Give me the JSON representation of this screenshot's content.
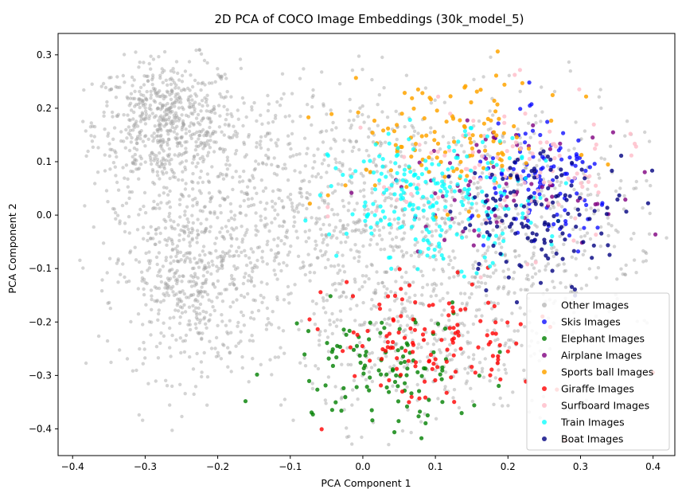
{
  "chart_data": {
    "type": "scatter",
    "title": "2D PCA of COCO Image Embeddings (30k_model_5)",
    "xlabel": "PCA Component 1",
    "ylabel": "PCA Component 2",
    "xlim": [
      -0.42,
      0.43
    ],
    "ylim": [
      -0.45,
      0.34
    ],
    "xticks": [
      -0.4,
      -0.3,
      -0.2,
      -0.1,
      0.0,
      0.1,
      0.2,
      0.3,
      0.4
    ],
    "xtick_labels": [
      "−0.4",
      "−0.3",
      "−0.2",
      "−0.1",
      "0.0",
      "0.1",
      "0.2",
      "0.3",
      "0.4"
    ],
    "yticks": [
      0.3,
      0.2,
      0.1,
      0.0,
      -0.1,
      -0.2,
      -0.3,
      -0.4
    ],
    "ytick_labels": [
      "0.3",
      "0.2",
      "0.1",
      "0.0",
      "−0.1",
      "−0.2",
      "−0.3",
      "−0.4"
    ],
    "grid": false,
    "legend_position": "bottom-right",
    "series": [
      {
        "name": "Other Images",
        "color": "#a0a0a0",
        "alpha": 0.45,
        "marker_size": 2.2,
        "clusters": [
          {
            "cx": -0.27,
            "cy": 0.17,
            "sx": 0.05,
            "sy": 0.06,
            "n": 650
          },
          {
            "cx": -0.24,
            "cy": -0.12,
            "sx": 0.05,
            "sy": 0.09,
            "n": 520
          },
          {
            "cx": -0.12,
            "cy": 0.02,
            "sx": 0.09,
            "sy": 0.12,
            "n": 520
          },
          {
            "cx": 0.04,
            "cy": -0.05,
            "sx": 0.09,
            "sy": 0.14,
            "n": 450
          },
          {
            "cx": 0.22,
            "cy": 0.0,
            "sx": 0.1,
            "sy": 0.12,
            "n": 420
          },
          {
            "cx": 0.1,
            "cy": -0.25,
            "sx": 0.09,
            "sy": 0.07,
            "n": 240
          }
        ]
      },
      {
        "name": "Skis Images",
        "color": "#0000ff",
        "alpha": 0.75,
        "marker_size": 2.6,
        "clusters": [
          {
            "cx": 0.25,
            "cy": 0.05,
            "sx": 0.05,
            "sy": 0.06,
            "n": 110
          }
        ]
      },
      {
        "name": "Elephant Images",
        "color": "#008000",
        "alpha": 0.8,
        "marker_size": 2.6,
        "clusters": [
          {
            "cx": 0.03,
            "cy": -0.28,
            "sx": 0.07,
            "sy": 0.06,
            "n": 110
          }
        ]
      },
      {
        "name": "Airplane Images",
        "color": "#800080",
        "alpha": 0.8,
        "marker_size": 2.6,
        "clusters": [
          {
            "cx": 0.18,
            "cy": 0.05,
            "sx": 0.07,
            "sy": 0.05,
            "n": 70
          }
        ]
      },
      {
        "name": "Sports ball Images",
        "color": "#ffa500",
        "alpha": 0.85,
        "marker_size": 2.6,
        "clusters": [
          {
            "cx": 0.12,
            "cy": 0.14,
            "sx": 0.08,
            "sy": 0.06,
            "n": 120
          }
        ]
      },
      {
        "name": "Giraffe Images",
        "color": "#ff0000",
        "alpha": 0.8,
        "marker_size": 2.6,
        "clusters": [
          {
            "cx": 0.1,
            "cy": -0.24,
            "sx": 0.07,
            "sy": 0.06,
            "n": 130
          }
        ]
      },
      {
        "name": "Surfboard Images",
        "color": "#ffc0cb",
        "alpha": 0.85,
        "marker_size": 2.6,
        "clusters": [
          {
            "cx": 0.2,
            "cy": 0.08,
            "sx": 0.09,
            "sy": 0.07,
            "n": 110
          }
        ]
      },
      {
        "name": "Train Images",
        "color": "#00ffff",
        "alpha": 0.75,
        "marker_size": 2.6,
        "clusters": [
          {
            "cx": 0.1,
            "cy": 0.03,
            "sx": 0.07,
            "sy": 0.06,
            "n": 230
          }
        ]
      },
      {
        "name": "Boat Images",
        "color": "#000080",
        "alpha": 0.8,
        "marker_size": 2.6,
        "clusters": [
          {
            "cx": 0.25,
            "cy": 0.0,
            "sx": 0.06,
            "sy": 0.06,
            "n": 130
          }
        ]
      }
    ]
  }
}
